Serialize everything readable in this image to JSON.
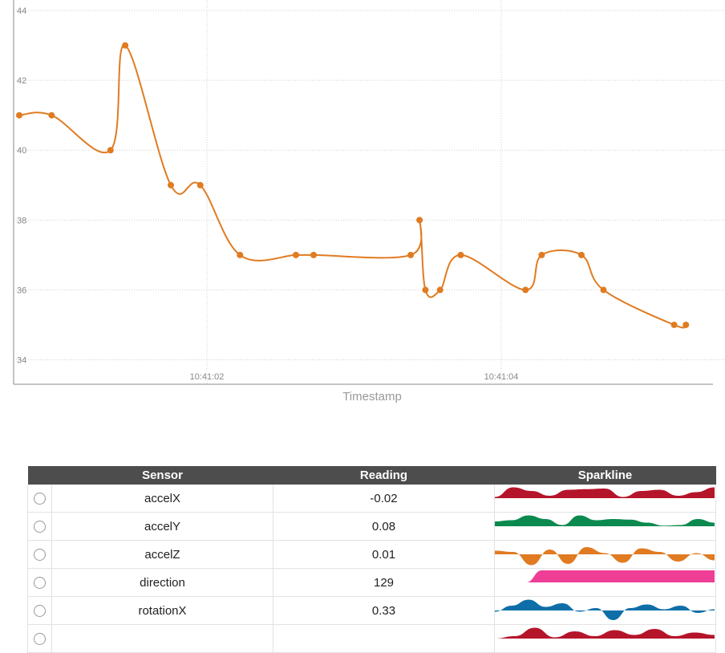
{
  "chart_data": {
    "type": "line",
    "title": "",
    "xlabel": "Timestamp",
    "ylabel": "",
    "ylim": [
      33.3,
      44.3
    ],
    "x_tick_labels": [
      "10:41:02",
      "10:41:04"
    ],
    "y_ticks": [
      34,
      36,
      38,
      40,
      42,
      44
    ],
    "grid": true,
    "series": [
      {
        "color": "#e07b21",
        "x": [
          0.0,
          0.22,
          0.62,
          0.72,
          1.03,
          1.23,
          1.5,
          1.88,
          2.0,
          2.66,
          2.72,
          2.76,
          2.86,
          3.0,
          3.44,
          3.55,
          3.82,
          3.97,
          4.45,
          4.53
        ],
        "values": [
          41,
          41,
          40,
          43,
          39,
          39,
          37,
          37,
          37,
          37,
          38,
          36,
          36,
          37,
          36,
          37,
          37,
          36,
          35,
          35
        ]
      }
    ]
  },
  "table": {
    "headers": [
      "Sensor",
      "Reading",
      "Sparkline"
    ],
    "rows": [
      {
        "sensor": "accelX",
        "reading": "-0.02"
      },
      {
        "sensor": "accelY",
        "reading": "0.08"
      },
      {
        "sensor": "accelZ",
        "reading": "0.01"
      },
      {
        "sensor": "direction",
        "reading": "129"
      },
      {
        "sensor": "rotationX",
        "reading": "0.33"
      },
      {
        "sensor": "",
        "reading": ""
      }
    ]
  },
  "sparklines": [
    {
      "color": "#b5152b",
      "values": [
        0.1,
        0.9,
        0.6,
        0.2,
        0.7,
        0.75,
        0.8,
        0.1,
        0.6,
        0.7,
        0.2,
        0.5,
        0.9
      ]
    },
    {
      "color": "#0b8a4f",
      "values": [
        0.4,
        0.5,
        0.9,
        0.6,
        0.1,
        0.9,
        0.5,
        0.6,
        0.55,
        0.3,
        0.05,
        0.1,
        0.6,
        0.3
      ]
    },
    {
      "color": "#e07b21",
      "values": [
        0.3,
        0.2,
        -0.9,
        0.4,
        -0.8,
        0.6,
        0.1,
        -0.7,
        0.5,
        0.2,
        -0.6,
        0.1,
        -0.5
      ]
    },
    {
      "color": "#ee3e96",
      "values": [
        0,
        0,
        0,
        1,
        1,
        1,
        1,
        1,
        1,
        1,
        1,
        1,
        1,
        1,
        1
      ]
    },
    {
      "color": "#0e6fa8",
      "values": [
        -0.1,
        0.4,
        0.9,
        0.3,
        0.6,
        -0.1,
        0.2,
        -0.8,
        0.2,
        0.5,
        0.1,
        0.4,
        -0.2,
        0.1
      ]
    },
    {
      "color": "#b5152b",
      "values": [
        0,
        0.2,
        0.9,
        0.1,
        0.6,
        0.2,
        0.7,
        0.3,
        0.8,
        0.2,
        0.5,
        0.3
      ]
    }
  ]
}
